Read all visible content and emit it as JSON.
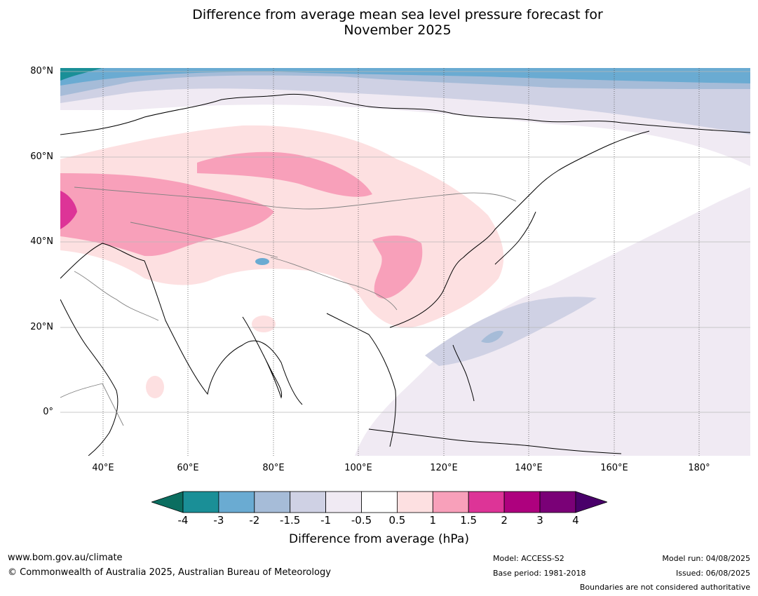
{
  "title_line1": "Difference from average mean sea level pressure forecast for",
  "title_line2": "November 2025",
  "lat_labels": [
    "80°N",
    "60°N",
    "40°N",
    "20°N",
    "0°"
  ],
  "lon_labels": [
    "40°E",
    "60°E",
    "80°E",
    "100°E",
    "120°E",
    "140°E",
    "160°E",
    "180°"
  ],
  "colorbar": {
    "ticks": [
      "-4",
      "-3",
      "-2",
      "-1.5",
      "-1",
      "-0.5",
      "0.5",
      "1",
      "1.5",
      "2",
      "3",
      "4"
    ],
    "colors": [
      "#1a8f97",
      "#6aabd2",
      "#a6bcd8",
      "#cfd1e4",
      "#f0eaf3",
      "#ffffff",
      "#fde0e1",
      "#f8a0ba",
      "#dd3497",
      "#ae017e",
      "#7a0177"
    ],
    "under_color": "#0b6e60",
    "over_color": "#49006a",
    "label": "Difference from average (hPa)"
  },
  "footer": {
    "url": "www.bom.gov.au/climate",
    "copyright": "© Commonwealth of Australia 2025, Australian Bureau of Meteorology",
    "model": "Model: ACCESS-S2",
    "base_period": "Base period: 1981-2018",
    "model_run": "Model run: 04/08/2025",
    "issued": "Issued: 06/08/2025",
    "boundaries": "Boundaries are not considered authoritative"
  }
}
